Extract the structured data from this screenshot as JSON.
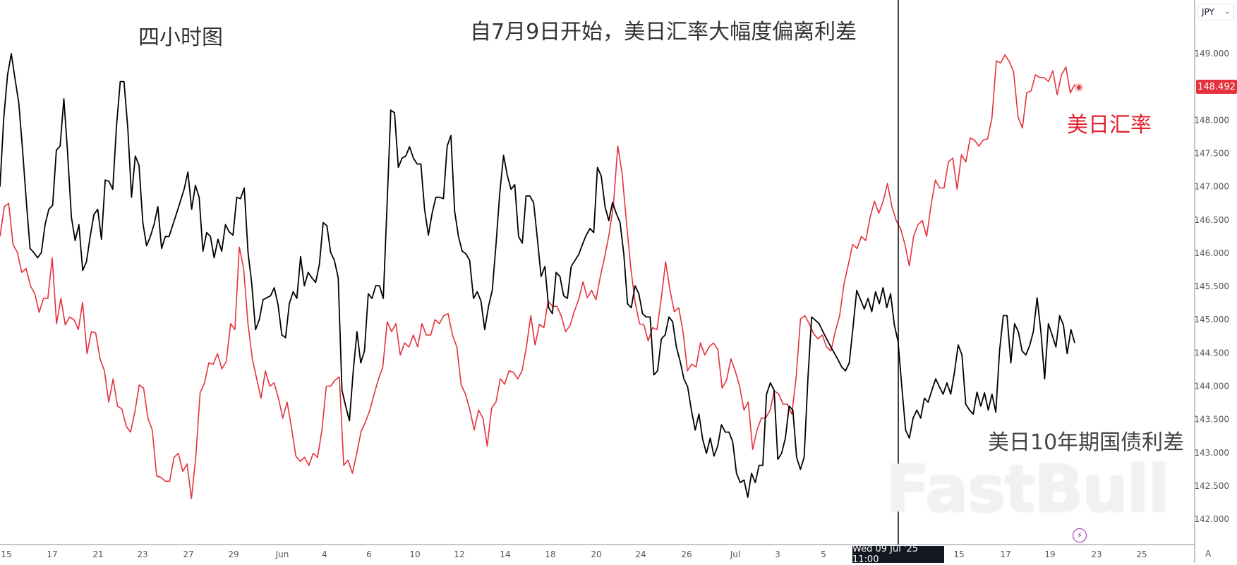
{
  "chart_data": {
    "type": "line",
    "title": "四小时图",
    "subtitle": "自7月9日开始，美日汇率大幅度偏离利差",
    "currency": "JPY",
    "y_ticks": [
      "149.000",
      "148.000",
      "147.500",
      "147.000",
      "146.500",
      "146.000",
      "145.500",
      "145.000",
      "144.500",
      "144.000",
      "143.500",
      "143.000",
      "142.500",
      "142.000"
    ],
    "ylim": [
      141.7,
      149.8
    ],
    "x_ticks": [
      "15",
      "17",
      "21",
      "23",
      "27",
      "29",
      "Jun",
      "4",
      "6",
      "10",
      "12",
      "14",
      "18",
      "20",
      "24",
      "26",
      "Jul",
      "3",
      "5",
      "15",
      "17",
      "19",
      "23",
      "25"
    ],
    "crosshair_label": "Wed 09 Jul '25   11:00",
    "last_price": "148.492",
    "grid": false,
    "series": [
      {
        "name": "美日汇率",
        "color": "#e5313c",
        "values": [
          146.25,
          146.7,
          146.75,
          146.13,
          146.01,
          145.71,
          145.77,
          145.51,
          145.39,
          145.11,
          145.32,
          145.32,
          145.93,
          144.94,
          145.32,
          144.92,
          145.04,
          145.0,
          144.85,
          145.26,
          144.49,
          144.82,
          144.8,
          144.41,
          144.23,
          143.76,
          144.11,
          143.7,
          143.66,
          143.4,
          143.31,
          143.61,
          144.02,
          143.97,
          143.52,
          143.34,
          142.65,
          142.63,
          142.57,
          142.57,
          142.93,
          142.99,
          142.72,
          142.83,
          142.31,
          142.93,
          143.9,
          144.05,
          144.35,
          144.33,
          144.49,
          144.26,
          144.37,
          144.94,
          144.85,
          146.09,
          145.77,
          144.94,
          144.41,
          144.11,
          143.82,
          144.23,
          144.0,
          144.05,
          143.82,
          143.52,
          143.76,
          143.38,
          142.95,
          142.87,
          142.93,
          142.81,
          142.99,
          142.93,
          143.34,
          144.0,
          144.0,
          144.09,
          144.14,
          142.81,
          142.89,
          142.69,
          142.99,
          143.32,
          143.46,
          143.64,
          143.88,
          144.11,
          144.29,
          144.97,
          144.82,
          144.94,
          144.47,
          144.65,
          144.59,
          144.77,
          144.59,
          144.94,
          144.77,
          144.77,
          145.0,
          144.94,
          145.06,
          145.09,
          144.77,
          144.59,
          144.02,
          143.88,
          143.64,
          143.34,
          143.64,
          143.52,
          143.1,
          143.67,
          143.76,
          144.11,
          144.03,
          144.23,
          144.21,
          144.11,
          144.23,
          144.59,
          145.06,
          144.62,
          144.93,
          144.88,
          145.28,
          145.2,
          145.2,
          145.06,
          144.82,
          144.91,
          145.12,
          145.3,
          145.57,
          145.33,
          145.44,
          145.3,
          145.65,
          145.95,
          146.28,
          146.72,
          147.61,
          147.2,
          146.46,
          145.77,
          145.26,
          144.94,
          144.92,
          144.68,
          144.88,
          144.85,
          145.32,
          145.87,
          145.44,
          145.12,
          145.18,
          144.82,
          144.23,
          144.33,
          144.29,
          144.65,
          144.47,
          144.59,
          144.65,
          144.55,
          143.97,
          144.09,
          144.41,
          144.23,
          144.0,
          143.64,
          143.76,
          143.05,
          143.34,
          143.52,
          143.52,
          143.64,
          143.93,
          143.88,
          143.73,
          143.73,
          143.58,
          144.14,
          145.01,
          145.06,
          144.94,
          144.79,
          144.71,
          144.77,
          144.59,
          144.53,
          144.82,
          145.06,
          145.54,
          145.83,
          146.13,
          146.07,
          146.25,
          146.19,
          146.54,
          146.78,
          146.6,
          146.78,
          147.05,
          146.7,
          146.49,
          146.37,
          146.13,
          145.81,
          146.25,
          146.43,
          146.49,
          146.25,
          146.72,
          147.1,
          146.98,
          146.98,
          147.37,
          147.43,
          146.96,
          147.48,
          147.37,
          147.73,
          147.7,
          147.61,
          147.7,
          147.72,
          148.03,
          148.89,
          148.86,
          148.98,
          148.88,
          148.72,
          148.05,
          147.88,
          148.41,
          148.44,
          148.68,
          148.64,
          148.64,
          148.58,
          148.74,
          148.38,
          148.68,
          148.8,
          148.41,
          148.53,
          148.492
        ]
      },
      {
        "name": "美日10年期国债利差",
        "color": "#000000",
        "values": [
          147.0,
          148.03,
          148.68,
          149.0,
          148.62,
          148.26,
          147.55,
          146.78,
          146.07,
          146.01,
          145.93,
          146.01,
          146.43,
          146.66,
          146.72,
          147.55,
          147.61,
          148.32,
          147.49,
          146.54,
          146.19,
          146.43,
          145.74,
          145.87,
          146.25,
          146.58,
          146.66,
          146.21,
          147.1,
          147.08,
          146.96,
          147.91,
          148.58,
          148.58,
          147.88,
          146.84,
          147.46,
          147.32,
          146.46,
          146.11,
          146.25,
          146.43,
          146.7,
          146.07,
          146.25,
          146.25,
          146.43,
          146.6,
          146.78,
          146.96,
          147.22,
          146.66,
          147.02,
          146.84,
          146.03,
          146.31,
          146.25,
          145.93,
          146.21,
          146.03,
          146.43,
          146.32,
          146.27,
          146.84,
          146.82,
          146.98,
          146.01,
          145.54,
          144.85,
          145.0,
          145.3,
          145.33,
          145.36,
          145.48,
          145.22,
          144.77,
          144.73,
          145.24,
          145.42,
          145.32,
          145.95,
          145.51,
          145.71,
          145.63,
          145.56,
          145.83,
          146.46,
          146.41,
          146.01,
          145.89,
          145.63,
          143.94,
          143.7,
          143.48,
          144.23,
          144.82,
          144.35,
          144.53,
          145.39,
          145.32,
          145.51,
          145.51,
          145.32,
          146.72,
          148.15,
          148.11,
          147.29,
          147.43,
          147.46,
          147.6,
          147.43,
          147.34,
          147.34,
          146.66,
          146.27,
          146.6,
          146.84,
          146.84,
          146.82,
          147.61,
          147.77,
          146.63,
          146.25,
          146.03,
          145.99,
          145.89,
          145.32,
          145.42,
          145.28,
          144.85,
          145.2,
          145.44,
          146.13,
          146.9,
          147.47,
          147.17,
          146.96,
          147.03,
          146.25,
          146.15,
          146.86,
          146.86,
          146.76,
          146.22,
          145.65,
          145.8,
          145.18,
          145.09,
          145.71,
          145.65,
          145.36,
          145.32,
          145.8,
          145.89,
          145.98,
          146.13,
          146.27,
          146.37,
          146.31,
          147.29,
          147.16,
          146.7,
          146.49,
          146.76,
          146.6,
          146.46,
          145.99,
          145.24,
          145.18,
          145.51,
          145.39,
          145.09,
          145.04,
          145.04,
          144.17,
          144.23,
          144.71,
          144.77,
          145.04,
          144.97,
          144.59,
          144.37,
          144.11,
          143.99,
          143.64,
          143.34,
          143.58,
          143.2,
          142.99,
          143.22,
          142.95,
          143.1,
          143.42,
          143.31,
          143.31,
          143.16,
          142.69,
          142.55,
          142.59,
          142.33,
          142.69,
          142.55,
          142.81,
          142.81,
          143.88,
          144.05,
          143.94,
          142.9,
          142.99,
          143.22,
          143.7,
          143.64,
          142.93,
          142.75,
          142.93,
          144.11,
          145.04,
          144.99,
          144.94,
          144.82,
          144.71,
          144.6,
          144.5,
          144.4,
          144.29,
          144.23,
          144.35,
          144.88,
          145.44,
          145.3,
          145.16,
          145.32,
          145.12,
          145.42,
          145.24,
          145.48,
          145.18,
          145.39,
          144.92,
          144.67,
          143.99,
          143.34,
          143.22,
          143.52,
          143.64,
          143.52,
          143.82,
          143.76,
          143.94,
          144.11,
          143.99,
          143.88,
          144.05,
          143.88,
          144.21,
          144.62,
          144.47,
          143.73,
          143.64,
          143.58,
          143.91,
          143.7,
          143.9,
          143.64,
          143.88,
          143.61,
          144.53,
          145.06,
          145.06,
          144.35,
          144.94,
          144.82,
          144.53,
          144.47,
          144.61,
          144.82,
          145.33,
          144.82,
          144.11,
          144.94,
          144.77,
          144.59,
          145.06,
          144.92,
          144.49,
          144.85,
          144.65
        ]
      }
    ]
  },
  "labels": {
    "fx": "美日汇率",
    "spread": "美日10年期国债利差",
    "auto": "A"
  },
  "watermark": "FastBull",
  "icons": {
    "currency_dropdown": "chevron-down-icon",
    "alert": "lightning-icon"
  }
}
